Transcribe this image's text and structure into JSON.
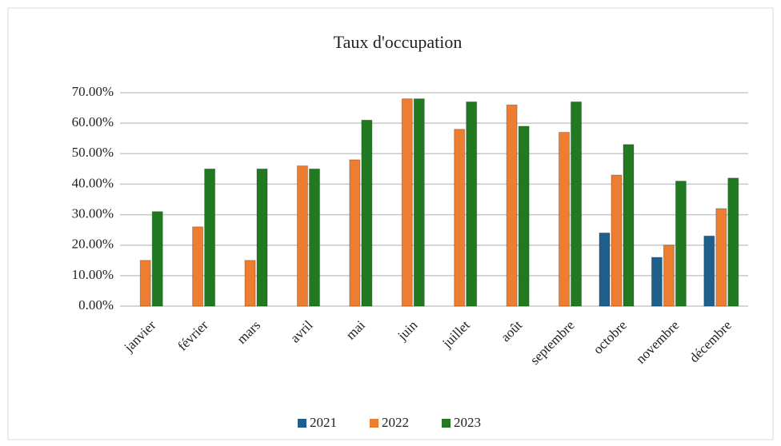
{
  "chart_data": {
    "type": "bar",
    "title": "Taux d'occupation",
    "categories": [
      "janvier",
      "février",
      "mars",
      "avril",
      "mai",
      "juin",
      "juillet",
      "août",
      "septembre",
      "octobre",
      "novembre",
      "décembre"
    ],
    "series": [
      {
        "name": "2021",
        "color": "#1f5f8b",
        "values": [
          null,
          null,
          null,
          null,
          null,
          null,
          null,
          null,
          null,
          24,
          16,
          23
        ]
      },
      {
        "name": "2022",
        "color": "#ed7d31",
        "values": [
          15,
          26,
          15,
          46,
          48,
          68,
          58,
          66,
          57,
          43,
          20,
          32
        ]
      },
      {
        "name": "2023",
        "color": "#217a21",
        "values": [
          31,
          45,
          45,
          45,
          61,
          68,
          67,
          59,
          67,
          53,
          41,
          42
        ]
      }
    ],
    "ylim": [
      0,
      70
    ],
    "yticks": [
      {
        "value": 0,
        "label": "0.00%"
      },
      {
        "value": 10,
        "label": "10.00%"
      },
      {
        "value": 20,
        "label": "20.00%"
      },
      {
        "value": 30,
        "label": "30.00%"
      },
      {
        "value": 40,
        "label": "40.00%"
      },
      {
        "value": 50,
        "label": "50.00%"
      },
      {
        "value": 60,
        "label": "60.00%"
      },
      {
        "value": 70,
        "label": "70.00%"
      }
    ],
    "grid": true,
    "legend": "bottom"
  }
}
